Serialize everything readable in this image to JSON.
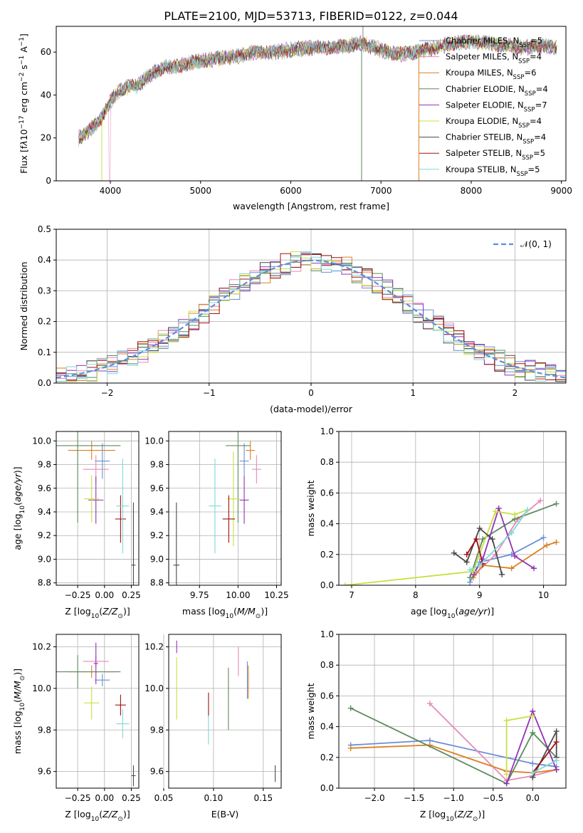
{
  "title": "PLATE=2100, MJD=53713, FIBERID=0122, z=0.044",
  "colors": [
    "#6a8ed8",
    "#e888b8",
    "#d98020",
    "#5e8a5e",
    "#9430b8",
    "#c8e040",
    "#4a4a4a",
    "#a01010",
    "#80d8d8"
  ],
  "normal_color": "#5b8edb",
  "chart_data": [
    {
      "id": "spectrum",
      "type": "line",
      "xlabel": "wavelength [Angstrom, rest frame]",
      "ylabel": "Flux [f",
      "xlim": [
        3400,
        9050
      ],
      "ylim": [
        0,
        72
      ],
      "xticks": [
        "4000",
        "5000",
        "6000",
        "7000",
        "8000",
        "9000"
      ],
      "yticks": [
        "0",
        "20",
        "40",
        "60"
      ],
      "continuum": {
        "x": [
          3650,
          3700,
          3800,
          3900,
          4000,
          4100,
          4200,
          4300,
          4400,
          4500,
          4600,
          4700,
          4800,
          4900,
          5000,
          5200,
          5400,
          5600,
          5800,
          6000,
          6200,
          6400,
          6600,
          6800,
          7000,
          7200,
          7400,
          7600,
          7800,
          8000,
          8200,
          8400,
          8600,
          8800,
          8950
        ],
        "y": [
          20,
          21,
          25,
          29,
          37,
          42,
          44,
          44,
          48,
          51,
          53,
          53,
          54,
          55,
          56,
          57,
          58,
          60,
          60,
          61,
          62,
          62,
          63,
          64,
          61,
          59,
          60,
          62,
          64,
          65,
          64,
          63,
          62,
          63,
          62
        ]
      },
      "legend": [
        {
          "name": "Chabrier MILES, N",
          "sub": "SSP",
          "count": "=5"
        },
        {
          "name": "Salpeter MILES, N",
          "sub": "SSP",
          "count": "=4"
        },
        {
          "name": "Kroupa MILES, N",
          "sub": "SSP",
          "count": "=6"
        },
        {
          "name": "Chabrier ELODIE, N",
          "sub": "SSP",
          "count": "=4"
        },
        {
          "name": "Salpeter ELODIE, N",
          "sub": "SSP",
          "count": "=7"
        },
        {
          "name": "Kroupa ELODIE, N",
          "sub": "SSP",
          "count": "=4"
        },
        {
          "name": "Chabrier STELIB, N",
          "sub": "SSP",
          "count": "=4"
        },
        {
          "name": "Salpeter STELIB, N",
          "sub": "SSP",
          "count": "=5"
        },
        {
          "name": "Kroupa STELIB, N",
          "sub": "SSP",
          "count": "=5"
        }
      ]
    },
    {
      "id": "residuals",
      "type": "bar",
      "xlabel": "(data-model)/error",
      "ylabel": "Normed distribution",
      "xlim": [
        -2.5,
        2.5
      ],
      "ylim": [
        0,
        0.5
      ],
      "bin_width": 0.1,
      "xticks": [
        -2,
        -1,
        0,
        1,
        2
      ],
      "xtick_labels": [
        "−2",
        "−1",
        "0",
        "1",
        "2"
      ],
      "yticks": [
        0,
        0.1,
        0.2,
        0.3,
        0.4,
        0.5
      ],
      "ytick_labels": [
        "0.0",
        "0.1",
        "0.2",
        "0.3",
        "0.4",
        "0.5"
      ],
      "legend": "𝒩(0, 1)"
    },
    {
      "id": "age_vs_Z",
      "type": "scatter",
      "xlabel": "Z [log",
      "ylabel": "age  [log",
      "xlim": [
        -0.45,
        0.32
      ],
      "ylim": [
        8.78,
        10.08
      ],
      "xticks": [
        -0.25,
        0,
        0.25
      ],
      "xtick_labels": [
        "−0.25",
        "0.00",
        "0.25"
      ],
      "yticks": [
        8.8,
        9,
        9.2,
        9.4,
        9.6,
        9.8,
        10
      ],
      "ytick_labels": [
        "8.8",
        "9.0",
        "9.2",
        "9.4",
        "9.6",
        "9.8",
        "10.0"
      ],
      "points": [
        {
          "s": 0,
          "x": -0.02,
          "y": 9.83,
          "xe": 0.07,
          "ye": 0.15
        },
        {
          "s": 1,
          "x": -0.08,
          "y": 9.76,
          "xe": 0.12,
          "ye": 0.12
        },
        {
          "s": 2,
          "x": -0.12,
          "y": 9.92,
          "xe": 0.22,
          "ye": 0.08
        },
        {
          "s": 3,
          "x": -0.25,
          "y": 9.96,
          "xe": 0.4,
          "ye": 0.65
        },
        {
          "s": 4,
          "x": -0.08,
          "y": 9.5,
          "xe": 0.07,
          "ye": 0.2
        },
        {
          "s": 5,
          "x": -0.12,
          "y": 9.51,
          "xe": 0.07,
          "ye": 0.2
        },
        {
          "s": 6,
          "x": 0.27,
          "y": 8.95,
          "xe": 0.02,
          "ye": 0.53
        },
        {
          "s": 7,
          "x": 0.15,
          "y": 9.34,
          "xe": 0.05,
          "ye": 0.2
        },
        {
          "s": 8,
          "x": 0.17,
          "y": 9.45,
          "xe": 0.06,
          "ye": 0.4
        }
      ]
    },
    {
      "id": "age_vs_mass",
      "type": "scatter",
      "xlabel": "mass [log",
      "ylabel": "",
      "xlim": [
        9.55,
        10.28
      ],
      "ylim": [
        8.78,
        10.08
      ],
      "xticks": [
        9.75,
        10,
        10.25
      ],
      "xtick_labels": [
        "9.75",
        "10.00",
        "10.25"
      ],
      "yticks": [
        8.8,
        9,
        9.2,
        9.4,
        9.6,
        9.8,
        10
      ],
      "ytick_labels": [
        "8.8",
        "9.0",
        "9.2",
        "9.4",
        "9.6",
        "9.8",
        "10.0"
      ],
      "points": [
        {
          "s": 0,
          "x": 10.04,
          "y": 9.83,
          "xe": 0.03,
          "ye": 0.15
        },
        {
          "s": 1,
          "x": 10.12,
          "y": 9.76,
          "xe": 0.03,
          "ye": 0.12
        },
        {
          "s": 2,
          "x": 10.08,
          "y": 9.92,
          "xe": 0.03,
          "ye": 0.08
        },
        {
          "s": 3,
          "x": 10.0,
          "y": 9.96,
          "xe": 0.08,
          "ye": 0.65
        },
        {
          "s": 4,
          "x": 10.04,
          "y": 9.5,
          "xe": 0.03,
          "ye": 0.2
        },
        {
          "s": 5,
          "x": 9.97,
          "y": 9.51,
          "xe": 0.04,
          "ye": 0.4
        },
        {
          "s": 6,
          "x": 9.6,
          "y": 8.95,
          "xe": 0.02,
          "ye": 0.53
        },
        {
          "s": 7,
          "x": 9.94,
          "y": 9.34,
          "xe": 0.04,
          "ye": 0.2
        },
        {
          "s": 8,
          "x": 9.85,
          "y": 9.45,
          "xe": 0.04,
          "ye": 0.4
        }
      ]
    },
    {
      "id": "weight_vs_age",
      "type": "line",
      "xlabel": "age  [log",
      "ylabel": "mass weight",
      "xlim": [
        6.8,
        10.35
      ],
      "ylim": [
        0,
        1
      ],
      "xticks": [
        7,
        8,
        9,
        10
      ],
      "xtick_labels": [
        "7",
        "8",
        "9",
        "10"
      ],
      "yticks": [
        0,
        0.2,
        0.4,
        0.6,
        0.8,
        1
      ],
      "ytick_labels": [
        "0.0",
        "0.2",
        "0.4",
        "0.6",
        "0.8",
        "1.0"
      ],
      "series": [
        {
          "s": 0,
          "x": [
            8.85,
            9.0,
            9.5,
            10.0
          ],
          "y": [
            0.02,
            0.15,
            0.2,
            0.31
          ]
        },
        {
          "s": 1,
          "x": [
            8.95,
            9.25,
            9.6,
            9.95
          ],
          "y": [
            0.08,
            0.2,
            0.43,
            0.55
          ]
        },
        {
          "s": 2,
          "x": [
            8.9,
            9.05,
            9.5,
            10.05,
            10.2
          ],
          "y": [
            0.05,
            0.13,
            0.11,
            0.26,
            0.28
          ]
        },
        {
          "s": 3,
          "x": [
            8.85,
            9.05,
            9.55,
            10.2
          ],
          "y": [
            0.05,
            0.3,
            0.43,
            0.53
          ]
        },
        {
          "s": 4,
          "x": [
            8.9,
            9.05,
            9.3,
            9.55,
            9.85
          ],
          "y": [
            0.07,
            0.17,
            0.5,
            0.19,
            0.11
          ]
        },
        {
          "s": 5,
          "x": [
            6.9,
            8.9,
            9.25,
            9.55,
            9.75
          ],
          "y": [
            0.0,
            0.09,
            0.48,
            0.46,
            0.49
          ]
        },
        {
          "s": 6,
          "x": [
            8.6,
            8.8,
            9.0,
            9.2,
            9.35
          ],
          "y": [
            0.21,
            0.15,
            0.37,
            0.3,
            0.07
          ]
        },
        {
          "s": 7,
          "x": [
            8.8,
            8.95,
            9.05
          ],
          "y": [
            0.2,
            0.3,
            0.14
          ]
        },
        {
          "s": 8,
          "x": [
            8.85,
            9.0,
            9.5,
            9.75
          ],
          "y": [
            0.1,
            0.13,
            0.34,
            0.49
          ]
        }
      ]
    },
    {
      "id": "mass_vs_Z",
      "type": "scatter",
      "xlabel": "Z [log",
      "ylabel": "mass [log",
      "xlim": [
        -0.45,
        0.32
      ],
      "ylim": [
        9.52,
        10.26
      ],
      "xticks": [
        -0.25,
        0,
        0.25
      ],
      "xtick_labels": [
        "−0.25",
        "0.00",
        "0.25"
      ],
      "yticks": [
        9.6,
        9.8,
        10,
        10.2
      ],
      "ytick_labels": [
        "9.6",
        "9.8",
        "10.0",
        "10.2"
      ],
      "points": [
        {
          "s": 0,
          "x": -0.02,
          "y": 10.04,
          "xe": 0.07,
          "ye": 0.03
        },
        {
          "s": 1,
          "x": -0.08,
          "y": 10.13,
          "xe": 0.12,
          "ye": 0.03
        },
        {
          "s": 2,
          "x": -0.12,
          "y": 10.08,
          "xe": 0.22,
          "ye": 0.03
        },
        {
          "s": 3,
          "x": -0.25,
          "y": 10.08,
          "xe": 0.4,
          "ye": 0.08
        },
        {
          "s": 4,
          "x": -0.08,
          "y": 10.12,
          "xe": 0.02,
          "ye": 0.1
        },
        {
          "s": 5,
          "x": -0.12,
          "y": 9.93,
          "xe": 0.07,
          "ye": 0.08
        },
        {
          "s": 6,
          "x": 0.27,
          "y": 9.58,
          "xe": 0.02,
          "ye": 0.05
        },
        {
          "s": 7,
          "x": 0.15,
          "y": 9.92,
          "xe": 0.05,
          "ye": 0.05
        },
        {
          "s": 8,
          "x": 0.17,
          "y": 9.83,
          "xe": 0.06,
          "ye": 0.07
        }
      ]
    },
    {
      "id": "mass_vs_ebv",
      "type": "scatter",
      "xlabel": "E(B-V)",
      "ylabel": "",
      "xlim": [
        0.055,
        0.168
      ],
      "ylim": [
        9.52,
        10.26
      ],
      "xticks": [
        0.05,
        0.1,
        0.15
      ],
      "xtick_labels": [
        "0.05",
        "0.10",
        "0.15"
      ],
      "yticks": [
        9.6,
        9.8,
        10,
        10.2
      ],
      "ytick_labels": [
        "9.6",
        "9.8",
        "10.0",
        "10.2"
      ],
      "points": [
        {
          "s": 0,
          "x": 0.134,
          "y": 10.04,
          "xe": 0,
          "ye": 0.09
        },
        {
          "s": 1,
          "x": 0.125,
          "y": 10.13,
          "xe": 0,
          "ye": 0.07
        },
        {
          "s": 2,
          "x": 0.135,
          "y": 10.03,
          "xe": 0,
          "ye": 0.08
        },
        {
          "s": 3,
          "x": 0.115,
          "y": 9.95,
          "xe": 0,
          "ye": 0.15
        },
        {
          "s": 4,
          "x": 0.063,
          "y": 10.2,
          "xe": 0,
          "ye": 0.03
        },
        {
          "s": 5,
          "x": 0.063,
          "y": 10.0,
          "xe": 0,
          "ye": 0.15
        },
        {
          "s": 6,
          "x": 0.162,
          "y": 9.59,
          "xe": 0,
          "ye": 0.04
        },
        {
          "s": 7,
          "x": 0.095,
          "y": 9.92,
          "xe": 0,
          "ye": 0.06
        },
        {
          "s": 8,
          "x": 0.095,
          "y": 9.8,
          "xe": 0,
          "ye": 0.07
        }
      ]
    },
    {
      "id": "weight_vs_Z",
      "type": "line",
      "xlabel": "Z [log",
      "ylabel": "mass weight",
      "xlim": [
        -2.45,
        0.42
      ],
      "ylim": [
        0,
        1
      ],
      "xticks": [
        -2,
        -1.5,
        -1,
        -0.5,
        0
      ],
      "xtick_labels": [
        "−2.0",
        "−1.5",
        "−1.0",
        "−0.5",
        "0.0"
      ],
      "yticks": [
        0,
        0.2,
        0.4,
        0.6,
        0.8,
        1
      ],
      "ytick_labels": [
        "0.0",
        "0.2",
        "0.4",
        "0.6",
        "0.8",
        "1.0"
      ],
      "series": [
        {
          "s": 0,
          "x": [
            -2.3,
            -1.3,
            0.0,
            0.3
          ],
          "y": [
            0.28,
            0.31,
            0.16,
            0.14
          ]
        },
        {
          "s": 1,
          "x": [
            -1.3,
            -0.33,
            0.0,
            0.3
          ],
          "y": [
            0.55,
            0.05,
            0.08,
            0.12
          ]
        },
        {
          "s": 2,
          "x": [
            -2.3,
            -1.3,
            -0.33,
            0.0,
            0.3
          ],
          "y": [
            0.26,
            0.28,
            0.11,
            0.1,
            0.12
          ]
        },
        {
          "s": 3,
          "x": [
            -2.3,
            -0.33,
            0.0,
            0.3
          ],
          "y": [
            0.52,
            0.03,
            0.36,
            0.2
          ]
        },
        {
          "s": 4,
          "x": [
            -0.33,
            0.0,
            0.3
          ],
          "y": [
            0.03,
            0.5,
            0.12
          ]
        },
        {
          "s": 5,
          "x": [
            -0.33,
            -0.33,
            0.0
          ],
          "y": [
            0.09,
            0.44,
            0.47
          ]
        },
        {
          "s": 6,
          "x": [
            0.0,
            0.3,
            0.3
          ],
          "y": [
            0.07,
            0.37,
            0.2
          ]
        },
        {
          "s": 7,
          "x": [
            0.0,
            0.3
          ],
          "y": [
            0.1,
            0.3
          ]
        },
        {
          "s": 8,
          "x": [
            0.0,
            0.3
          ],
          "y": [
            0.1,
            0.18
          ]
        }
      ]
    }
  ]
}
